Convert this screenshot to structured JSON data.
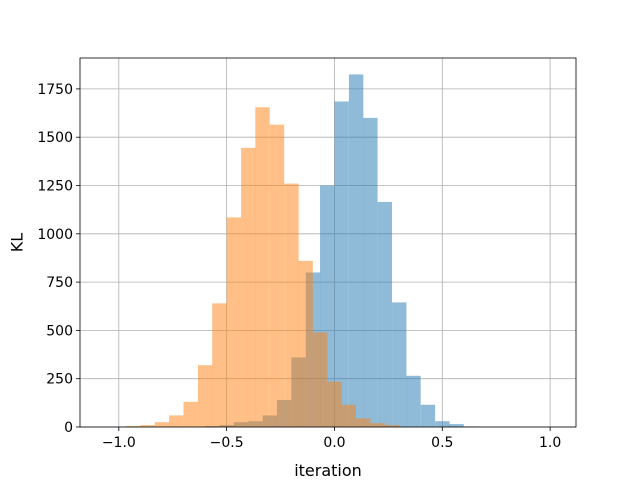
{
  "chart_data": {
    "type": "histogram",
    "title": "",
    "xlabel": "iteration",
    "ylabel": "KL",
    "xlim": [
      -1.18,
      1.12
    ],
    "ylim": [
      0,
      1910
    ],
    "grid": true,
    "bin_width": 0.0667,
    "x_ticks": [
      {
        "value": -1.0,
        "label": "−1.0"
      },
      {
        "value": -0.5,
        "label": "−0.5"
      },
      {
        "value": 0.0,
        "label": "0.0"
      },
      {
        "value": 0.5,
        "label": "0.5"
      },
      {
        "value": 1.0,
        "label": "1.0"
      }
    ],
    "y_ticks": [
      {
        "value": 0,
        "label": "0"
      },
      {
        "value": 250,
        "label": "250"
      },
      {
        "value": 500,
        "label": "500"
      },
      {
        "value": 750,
        "label": "750"
      },
      {
        "value": 1000,
        "label": "1000"
      },
      {
        "value": 1250,
        "label": "1250"
      },
      {
        "value": 1500,
        "label": "1500"
      },
      {
        "value": 1750,
        "label": "1750"
      }
    ],
    "series": [
      {
        "color": "#1f77b4",
        "opacity": 0.5,
        "bins": [
          {
            "x0": -0.6,
            "count": 5
          },
          {
            "x0": -0.533,
            "count": 10
          },
          {
            "x0": -0.467,
            "count": 25
          },
          {
            "x0": -0.4,
            "count": 30
          },
          {
            "x0": -0.333,
            "count": 60
          },
          {
            "x0": -0.267,
            "count": 140
          },
          {
            "x0": -0.2,
            "count": 360
          },
          {
            "x0": -0.133,
            "count": 800
          },
          {
            "x0": -0.067,
            "count": 1250
          },
          {
            "x0": 0.0,
            "count": 1685
          },
          {
            "x0": 0.067,
            "count": 1825
          },
          {
            "x0": 0.133,
            "count": 1600
          },
          {
            "x0": 0.2,
            "count": 1165
          },
          {
            "x0": 0.267,
            "count": 645
          },
          {
            "x0": 0.333,
            "count": 265
          },
          {
            "x0": 0.4,
            "count": 115
          },
          {
            "x0": 0.467,
            "count": 30
          },
          {
            "x0": 0.533,
            "count": 15
          },
          {
            "x0": 0.6,
            "count": 3
          }
        ]
      },
      {
        "color": "#ff7f0e",
        "opacity": 0.5,
        "bins": [
          {
            "x0": -0.967,
            "count": 5
          },
          {
            "x0": -0.9,
            "count": 10
          },
          {
            "x0": -0.833,
            "count": 25
          },
          {
            "x0": -0.767,
            "count": 60
          },
          {
            "x0": -0.7,
            "count": 130
          },
          {
            "x0": -0.633,
            "count": 320
          },
          {
            "x0": -0.567,
            "count": 640
          },
          {
            "x0": -0.5,
            "count": 1085
          },
          {
            "x0": -0.433,
            "count": 1445
          },
          {
            "x0": -0.367,
            "count": 1655
          },
          {
            "x0": -0.3,
            "count": 1565
          },
          {
            "x0": -0.233,
            "count": 1260
          },
          {
            "x0": -0.167,
            "count": 860
          },
          {
            "x0": -0.1,
            "count": 490
          },
          {
            "x0": -0.033,
            "count": 235
          },
          {
            "x0": 0.033,
            "count": 115
          },
          {
            "x0": 0.1,
            "count": 45
          },
          {
            "x0": 0.167,
            "count": 20
          },
          {
            "x0": 0.233,
            "count": 10
          }
        ]
      }
    ]
  }
}
